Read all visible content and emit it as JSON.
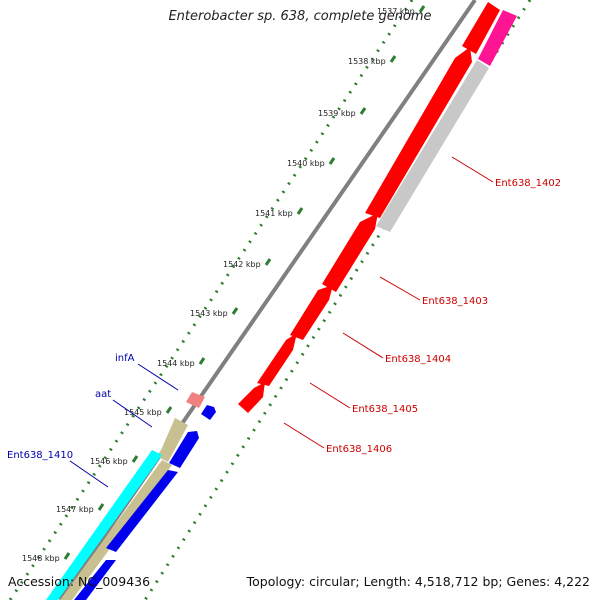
{
  "title": "Enterobacter sp. 638, complete genome",
  "accession": "Accession: NC_009436",
  "summary": "Topology: circular; Length: 4,518,712 bp; Genes: 4,222",
  "ticks": [
    {
      "label": "1537 kbp",
      "faded": true
    },
    {
      "label": "1538 kbp"
    },
    {
      "label": "1539 kbp"
    },
    {
      "label": "1540 kbp"
    },
    {
      "label": "1541 kbp"
    },
    {
      "label": "1542 kbp"
    },
    {
      "label": "1543 kbp"
    },
    {
      "label": "1544 kbp"
    },
    {
      "label": "1545 kbp"
    },
    {
      "label": "1546 kbp"
    },
    {
      "label": "1547 kbp"
    },
    {
      "label": "1548 kbp"
    }
  ],
  "genes_right": [
    {
      "label": "Ent638_1402",
      "color": "#cc0000"
    },
    {
      "label": "Ent638_1403",
      "color": "#cc0000"
    },
    {
      "label": "Ent638_1404",
      "color": "#cc0000"
    },
    {
      "label": "Ent638_1405",
      "color": "#cc0000"
    },
    {
      "label": "Ent638_1406",
      "color": "#cc0000"
    }
  ],
  "genes_left": [
    {
      "label": "infA",
      "color": "#0000aa"
    },
    {
      "label": "aat",
      "color": "#0000aa"
    },
    {
      "label": "Ent638_1410",
      "color": "#0000aa"
    }
  ],
  "colors": {
    "forward_cds": "#ff0000",
    "reverse_cds": "#0000ee",
    "backbone": "#808080",
    "tick": "#2e7d32",
    "trna": "#ff1493",
    "gray_feature": "#c8c8c8",
    "cyan_feature": "#00ffff",
    "khaki_feature": "#c8c090",
    "pink_feature": "#f08080"
  }
}
